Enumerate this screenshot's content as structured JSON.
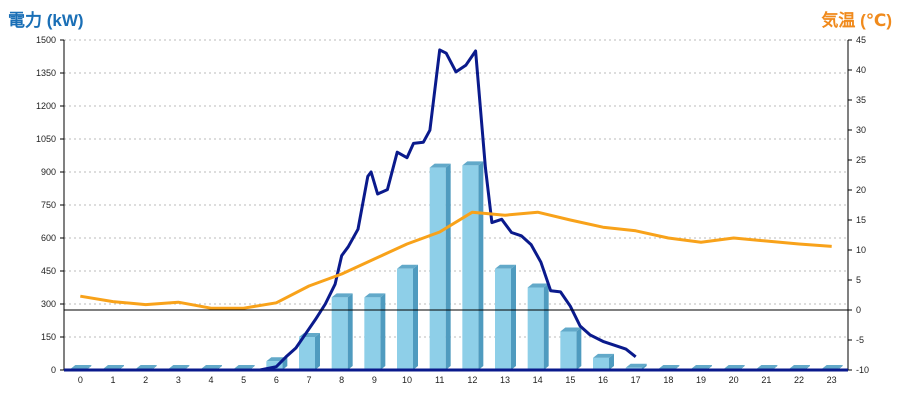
{
  "colors": {
    "left_axis_label": "#1a6fb6",
    "right_axis_label": "#f08a1c",
    "bar_front": "#8ecfe8",
    "bar_side": "#4f9bbf",
    "bar_top": "#62a9c9",
    "power_line": "#0a1a8c",
    "temp_line": "#f8a21a",
    "grid": "#bbbbbb",
    "zero_line": "#000000"
  },
  "chart_data": {
    "type": "bar",
    "title": "",
    "ylabel": "電力 (kW)",
    "y2label": "気温 (℃)",
    "xlabel": "",
    "categories": [
      "0",
      "1",
      "2",
      "3",
      "4",
      "5",
      "6",
      "7",
      "8",
      "9",
      "10",
      "11",
      "12",
      "13",
      "14",
      "15",
      "16",
      "17",
      "18",
      "19",
      "20",
      "21",
      "22",
      "23"
    ],
    "yticks": [
      0,
      150,
      300,
      450,
      600,
      750,
      900,
      1050,
      1200,
      1350,
      1500
    ],
    "y2ticks": [
      -10,
      -5,
      0,
      5,
      10,
      15,
      20,
      25,
      30,
      35,
      40,
      45
    ],
    "ylim": [
      0,
      1500
    ],
    "y2lim": [
      -10,
      45
    ],
    "grid": true,
    "series": [
      {
        "type": "bar",
        "axis": "left",
        "values": [
          0,
          0,
          0,
          0,
          0,
          0,
          40,
          150,
          330,
          330,
          460,
          920,
          930,
          460,
          375,
          175,
          55,
          10,
          0,
          0,
          0,
          0,
          0,
          0
        ]
      },
      {
        "type": "line",
        "axis": "left",
        "x": [
          5.5,
          6,
          6.3,
          6.6,
          6.9,
          7.2,
          7.5,
          7.8,
          8,
          8.2,
          8.5,
          8.8,
          8.9,
          9.1,
          9.4,
          9.7,
          10,
          10.2,
          10.5,
          10.7,
          11,
          11.2,
          11.5,
          11.8,
          12.1,
          12.4,
          12.6,
          12.9,
          13.2,
          13.5,
          13.8,
          14.1,
          14.4,
          14.7,
          15,
          15.3,
          15.6,
          16,
          16.3,
          16.7,
          17
        ],
        "values": [
          0,
          15,
          60,
          100,
          165,
          230,
          300,
          390,
          520,
          560,
          640,
          880,
          900,
          800,
          820,
          990,
          965,
          1030,
          1035,
          1090,
          1455,
          1440,
          1355,
          1385,
          1450,
          920,
          670,
          685,
          625,
          610,
          570,
          490,
          360,
          355,
          290,
          200,
          160,
          130,
          115,
          95,
          60
        ]
      },
      {
        "type": "line",
        "axis": "right",
        "x": [
          0,
          1,
          2,
          3,
          4,
          5,
          6,
          7,
          8,
          9,
          10,
          11,
          12,
          13,
          14,
          15,
          16,
          17,
          18,
          19,
          20,
          21,
          22,
          23
        ],
        "values": [
          2.3,
          1.4,
          0.9,
          1.3,
          0.3,
          0.3,
          1.2,
          4.0,
          6.0,
          8.5,
          11.0,
          13.0,
          16.3,
          15.8,
          16.3,
          15.0,
          13.8,
          13.2,
          12.0,
          11.3,
          12.0,
          11.5,
          11.0,
          10.6
        ]
      }
    ]
  }
}
